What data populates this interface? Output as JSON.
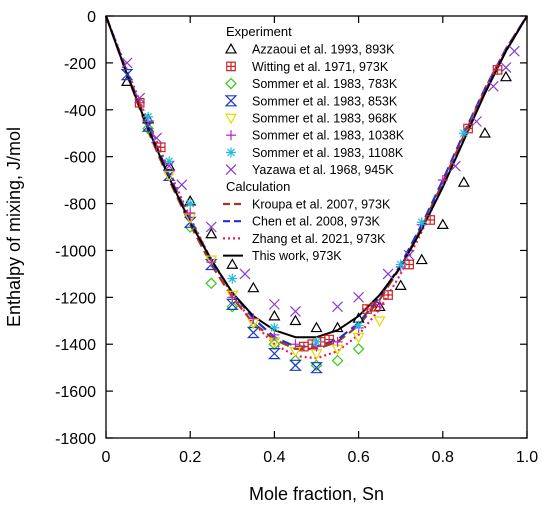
{
  "chart_data": {
    "type": "scatter",
    "title": "",
    "xlabel": "Mole fraction, Sn",
    "ylabel": "Enthalpy of mixing, J/mol",
    "xlim": [
      0,
      1
    ],
    "ylim": [
      -1800,
      0
    ],
    "x_ticks": [
      0,
      0.2,
      0.4,
      0.6,
      0.8,
      1.0
    ],
    "x_tick_labels": [
      "0",
      "0.2",
      "0.4",
      "0.6",
      "0.8",
      "1.0"
    ],
    "y_ticks": [
      0,
      -200,
      -400,
      -600,
      -800,
      -1000,
      -1200,
      -1400,
      -1600,
      -1800
    ],
    "y_tick_labels": [
      "0",
      "-200",
      "-400",
      "-600",
      "-800",
      "-1000",
      "-1200",
      "-1400",
      "-1600",
      "-1800"
    ],
    "grid": false,
    "legend_position": "top-right",
    "legend_groups": [
      "Experiment",
      "Calculation"
    ],
    "series": [
      {
        "name": "Azzaoui et al. 1993, 893K",
        "group": "Experiment",
        "marker": "triangle-up",
        "color": "#000000",
        "x": [
          0.05,
          0.1,
          0.15,
          0.2,
          0.25,
          0.3,
          0.35,
          0.4,
          0.45,
          0.5,
          0.55,
          0.6,
          0.65,
          0.7,
          0.75,
          0.8,
          0.85,
          0.9,
          0.95
        ],
        "y": [
          -280,
          -440,
          -640,
          -790,
          -930,
          -1060,
          -1160,
          -1280,
          -1300,
          -1330,
          -1330,
          -1290,
          -1240,
          -1150,
          -1040,
          -890,
          -710,
          -500,
          -260
        ]
      },
      {
        "name": "Witting et al. 1971, 973K",
        "group": "Experiment",
        "marker": "square-cross",
        "color": "#cc2222",
        "x": [
          0.08,
          0.13,
          0.47,
          0.49,
          0.51,
          0.53,
          0.62,
          0.64,
          0.67,
          0.72,
          0.77,
          0.86,
          0.93
        ],
        "y": [
          -370,
          -560,
          -1410,
          -1400,
          -1390,
          -1380,
          -1250,
          -1240,
          -1190,
          -1060,
          -870,
          -480,
          -230
        ]
      },
      {
        "name": "Sommer et al. 1983, 783K",
        "group": "Experiment",
        "marker": "diamond",
        "color": "#33cc11",
        "x": [
          0.1,
          0.2,
          0.25,
          0.3,
          0.35,
          0.4,
          0.45,
          0.5,
          0.55,
          0.6
        ],
        "y": [
          -480,
          -900,
          -1140,
          -1240,
          -1330,
          -1400,
          -1470,
          -1490,
          -1470,
          -1420
        ]
      },
      {
        "name": "Sommer et al. 1983, 853K",
        "group": "Experiment",
        "marker": "bowtie",
        "color": "#1c3cc8",
        "x": [
          0.05,
          0.1,
          0.15,
          0.2,
          0.25,
          0.3,
          0.35,
          0.4,
          0.45,
          0.5
        ],
        "y": [
          -250,
          -470,
          -680,
          -880,
          -1060,
          -1230,
          -1350,
          -1440,
          -1490,
          -1500
        ]
      },
      {
        "name": "Sommer et al. 1983, 968K",
        "group": "Experiment",
        "marker": "triangle-down",
        "color": "#e6d800",
        "x": [
          0.15,
          0.2,
          0.25,
          0.3,
          0.35,
          0.4,
          0.45,
          0.5,
          0.55,
          0.6,
          0.65
        ],
        "y": [
          -680,
          -860,
          -1040,
          -1190,
          -1310,
          -1390,
          -1430,
          -1440,
          -1420,
          -1370,
          -1300
        ]
      },
      {
        "name": "Sommer et al. 1983, 1038K",
        "group": "Experiment",
        "marker": "plus",
        "color": "#b325c9",
        "x": [
          0.1,
          0.2,
          0.25,
          0.3,
          0.35,
          0.4,
          0.45,
          0.5,
          0.55,
          0.6,
          0.65,
          0.7,
          0.75,
          0.8
        ],
        "y": [
          -450,
          -840,
          -1050,
          -1200,
          -1290,
          -1360,
          -1400,
          -1410,
          -1390,
          -1330,
          -1230,
          -1070,
          -890,
          -700
        ]
      },
      {
        "name": "Sommer et al. 1983, 1108K",
        "group": "Experiment",
        "marker": "asterisk",
        "color": "#22bbdd",
        "x": [
          0.1,
          0.15,
          0.2,
          0.3,
          0.4,
          0.5,
          0.6,
          0.7,
          0.75,
          0.85
        ],
        "y": [
          -430,
          -620,
          -800,
          -1120,
          -1330,
          -1390,
          -1320,
          -1060,
          -880,
          -500
        ]
      },
      {
        "name": "Yazawa et al. 1968, 945K",
        "group": "Experiment",
        "marker": "cross",
        "color": "#8a3ad0",
        "x": [
          0.05,
          0.08,
          0.12,
          0.15,
          0.18,
          0.25,
          0.33,
          0.4,
          0.45,
          0.55,
          0.6,
          0.67,
          0.72,
          0.83,
          0.88,
          0.92,
          0.95,
          0.97
        ],
        "y": [
          -200,
          -350,
          -520,
          -640,
          -720,
          -900,
          -1100,
          -1230,
          -1260,
          -1240,
          -1200,
          -1100,
          -1020,
          -640,
          -450,
          -300,
          -220,
          -150
        ]
      },
      {
        "name": "Kroupa et al. 2007, 973K",
        "group": "Calculation",
        "line": "dashed",
        "color": "#a3391c",
        "x": [
          0,
          0.05,
          0.1,
          0.15,
          0.2,
          0.25,
          0.3,
          0.35,
          0.4,
          0.45,
          0.5,
          0.55,
          0.6,
          0.65,
          0.7,
          0.75,
          0.8,
          0.85,
          0.9,
          0.95,
          1.0
        ],
        "y": [
          0,
          -250,
          -490,
          -700,
          -890,
          -1060,
          -1200,
          -1310,
          -1380,
          -1420,
          -1420,
          -1390,
          -1320,
          -1210,
          -1070,
          -900,
          -710,
          -510,
          -320,
          -150,
          0
        ]
      },
      {
        "name": "Chen et al. 2008, 973K",
        "group": "Calculation",
        "line": "dashed",
        "color": "#2233cc",
        "x": [
          0,
          0.05,
          0.1,
          0.15,
          0.2,
          0.25,
          0.3,
          0.35,
          0.4,
          0.45,
          0.5,
          0.55,
          0.6,
          0.65,
          0.7,
          0.75,
          0.8,
          0.85,
          0.9,
          0.95,
          1.0
        ],
        "y": [
          0,
          -240,
          -470,
          -680,
          -870,
          -1040,
          -1180,
          -1290,
          -1370,
          -1410,
          -1410,
          -1380,
          -1310,
          -1200,
          -1060,
          -890,
          -700,
          -500,
          -310,
          -140,
          0
        ]
      },
      {
        "name": "Zhang et al. 2021, 973K",
        "group": "Calculation",
        "line": "dotted",
        "color": "#dd2255",
        "x": [
          0,
          0.05,
          0.1,
          0.15,
          0.2,
          0.25,
          0.3,
          0.35,
          0.4,
          0.45,
          0.5,
          0.55,
          0.6,
          0.65,
          0.7,
          0.75,
          0.8,
          0.85,
          0.9,
          0.95,
          1.0
        ],
        "y": [
          0,
          -230,
          -450,
          -660,
          -860,
          -1040,
          -1190,
          -1310,
          -1400,
          -1450,
          -1460,
          -1430,
          -1360,
          -1250,
          -1100,
          -920,
          -720,
          -510,
          -310,
          -140,
          0
        ]
      },
      {
        "name": "This work, 973K",
        "group": "Calculation",
        "line": "solid",
        "color": "#000000",
        "x": [
          0,
          0.05,
          0.1,
          0.15,
          0.2,
          0.25,
          0.3,
          0.35,
          0.4,
          0.45,
          0.5,
          0.55,
          0.6,
          0.65,
          0.7,
          0.75,
          0.8,
          0.85,
          0.9,
          0.95,
          1.0
        ],
        "y": [
          0,
          -250,
          -480,
          -690,
          -880,
          -1040,
          -1180,
          -1280,
          -1340,
          -1370,
          -1370,
          -1340,
          -1280,
          -1190,
          -1070,
          -910,
          -730,
          -530,
          -330,
          -150,
          0
        ]
      }
    ]
  }
}
